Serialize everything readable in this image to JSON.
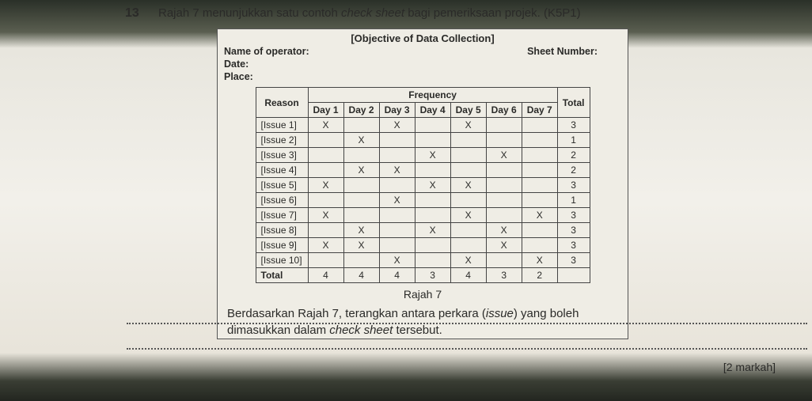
{
  "question_number": "13",
  "question_text_prefix": "Rajah 7 menunjukkan satu contoh ",
  "question_text_italic1": "check sheet",
  "question_text_mid": " bagi pemeriksaan projek. (K5P1)",
  "objective": "[Objective of Data Collection]",
  "meta": {
    "name_label": "Name of operator:",
    "date_label": "Date:",
    "place_label": "Place:",
    "sheet_label": "Sheet Number:"
  },
  "table": {
    "reason_header": "Reason",
    "freq_header": "Frequency",
    "day_headers": [
      "Day 1",
      "Day 2",
      "Day 3",
      "Day 4",
      "Day 5",
      "Day 6",
      "Day 7"
    ],
    "total_header": "Total",
    "rows": [
      {
        "label": "[Issue 1]",
        "cells": [
          "X",
          "",
          "X",
          "",
          "X",
          "",
          "",
          ""
        ],
        "total": "3"
      },
      {
        "label": "[Issue 2]",
        "cells": [
          "",
          "X",
          "",
          "",
          "",
          "",
          "",
          ""
        ],
        "total": "1"
      },
      {
        "label": "[Issue 3]",
        "cells": [
          "",
          "",
          "",
          "X",
          "",
          "X",
          "",
          ""
        ],
        "total": "2"
      },
      {
        "label": "[Issue 4]",
        "cells": [
          "",
          "X",
          "X",
          "",
          "",
          "",
          "",
          ""
        ],
        "total": "2"
      },
      {
        "label": "[Issue 5]",
        "cells": [
          "X",
          "",
          "",
          "X",
          "X",
          "",
          "",
          ""
        ],
        "total": "3"
      },
      {
        "label": "[Issue 6]",
        "cells": [
          "",
          "",
          "X",
          "",
          "",
          "",
          "",
          ""
        ],
        "total": "1"
      },
      {
        "label": "[Issue 7]",
        "cells": [
          "X",
          "",
          "",
          "",
          "X",
          "",
          "X",
          ""
        ],
        "total": "3"
      },
      {
        "label": "[Issue 8]",
        "cells": [
          "",
          "X",
          "",
          "X",
          "",
          "X",
          "",
          ""
        ],
        "total": "3"
      },
      {
        "label": "[Issue 9]",
        "cells": [
          "X",
          "X",
          "",
          "",
          "",
          "X",
          "",
          ""
        ],
        "total": "3"
      },
      {
        "label": "[Issue 10]",
        "cells": [
          "",
          "",
          "X",
          "",
          "X",
          "",
          "X",
          ""
        ],
        "total": "3"
      }
    ],
    "total_row_label": "Total",
    "totals": [
      "4",
      "4",
      "4",
      "3",
      "4",
      "3",
      "2",
      ""
    ]
  },
  "caption": "Rajah 7",
  "instruction_prefix": "Berdasarkan Rajah 7, terangkan antara perkara (",
  "instruction_italic": "issue",
  "instruction_mid": ") yang boleh dimasukkan dalam ",
  "instruction_italic2": "check sheet",
  "instruction_suffix": " tersebut.",
  "marks": "[2 markah]"
}
